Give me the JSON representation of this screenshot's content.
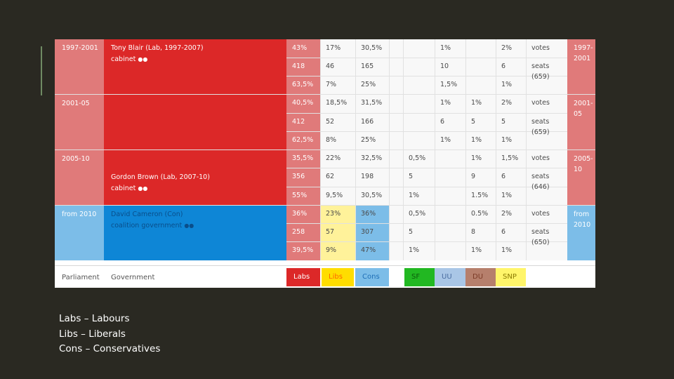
{
  "periods": {
    "p1": {
      "years": "1997-2001",
      "right": "1997-\n2001"
    },
    "p2": {
      "years": "2001-05",
      "right": "2001-\n05"
    },
    "p3": {
      "years": "2005-10",
      "right": "2005-\n10"
    },
    "p4": {
      "years": "from 2010",
      "right": "from\n2010"
    }
  },
  "governments": {
    "blair": {
      "name": "Tony Blair (Lab, 1997-2007)",
      "sub": "cabinet"
    },
    "brown": {
      "name": "Gordon Brown (Lab, 2007-10)",
      "sub": "cabinet"
    },
    "cameron": {
      "name": "David Cameron (Con)",
      "sub": "coalition government"
    }
  },
  "rows": [
    [
      "43%",
      "17%",
      "30,5%",
      "",
      "",
      "1%",
      "",
      "2%",
      "votes"
    ],
    [
      "418",
      "46",
      "165",
      "",
      "",
      "10",
      "",
      "6",
      "seats\n(659)"
    ],
    [
      "63,5%",
      "7%",
      "25%",
      "",
      "",
      "1,5%",
      "",
      "1%",
      ""
    ],
    [
      "40,5%",
      "18,5%",
      "31,5%",
      "",
      "",
      "1%",
      "1%",
      "2%",
      "votes"
    ],
    [
      "412",
      "52",
      "166",
      "",
      "",
      "6",
      "5",
      "5",
      "seats\n(659)"
    ],
    [
      "62,5%",
      "8%",
      "25%",
      "",
      "",
      "1%",
      "1%",
      "1%",
      ""
    ],
    [
      "35,5%",
      "22%",
      "32,5%",
      "",
      "0,5%",
      "",
      "1%",
      "1,5%",
      "votes"
    ],
    [
      "356",
      "62",
      "198",
      "",
      "5",
      "",
      "9",
      "6",
      "seats\n(646)"
    ],
    [
      "55%",
      "9,5%",
      "30,5%",
      "",
      "1%",
      "",
      "1.5%",
      "1%",
      ""
    ],
    [
      "36%",
      "23%",
      "36%",
      "",
      "0,5%",
      "",
      "0.5%",
      "2%",
      "votes"
    ],
    [
      "258",
      "57",
      "307",
      "",
      "5",
      "",
      "8",
      "6",
      "seats\n(650)"
    ],
    [
      "39,5%",
      "9%",
      "47%",
      "",
      "1%",
      "",
      "1%",
      "1%",
      ""
    ]
  ],
  "footer": {
    "parliament": "Parliament",
    "government": "Government",
    "parties": [
      "Labs",
      "Libs",
      "Cons",
      "SF",
      "UU",
      "DU",
      "SNP"
    ]
  },
  "colors": {
    "slide_bg": "#2a2922",
    "labour": "#dc2828",
    "labour_pale": "#e07a7a",
    "libs": "#fff29a",
    "libs_strong": "#ffdd00",
    "cons_pale": "#7cbde8",
    "cons": "#0e86d6",
    "sf": "#22b822",
    "uu": "#a9c6e6",
    "du": "#b67f6c",
    "snp": "#fff56a"
  },
  "legend": [
    "Labs – Labours",
    "Libs – Liberals",
    "Cons – Conservatives"
  ]
}
